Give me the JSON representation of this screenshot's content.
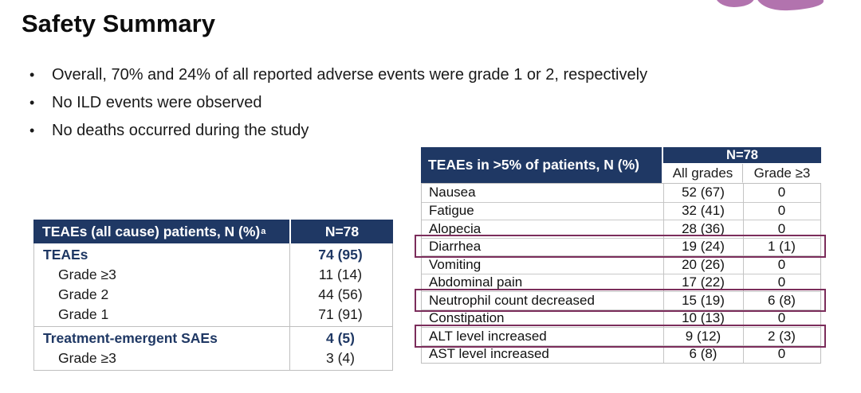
{
  "slide": {
    "title": "Safety Summary",
    "bullets": [
      "Overall, 70% and 24% of all reported adverse events were grade 1 or 2, respectively",
      "No ILD events were observed",
      "No deaths occurred during the study"
    ],
    "bullet_marker": "•"
  },
  "left_table": {
    "header_label": "TEAEs (all cause) patients, N (%)",
    "header_superscript": "a",
    "header_value": "N=78",
    "sections": [
      {
        "rows": [
          {
            "label": "TEAEs",
            "value": "74 (95)"
          },
          {
            "label": "Grade ≥3",
            "value": "11 (14)"
          },
          {
            "label": "Grade 2",
            "value": "44 (56)"
          },
          {
            "label": "Grade 1",
            "value": "71 (91)"
          }
        ]
      },
      {
        "rows": [
          {
            "label": "Treatment-emergent SAEs",
            "value": "4 (5)"
          },
          {
            "label": "Grade ≥3",
            "value": "3 (4)"
          }
        ]
      }
    ]
  },
  "right_table": {
    "header_label": "TEAEs in >5% of patients, N (%)",
    "n_label": "N=78",
    "col_headers": [
      "All grades",
      "Grade ≥3"
    ],
    "rows": [
      {
        "label": "Nausea",
        "all_grades": "52 (67)",
        "grade_ge3": "0",
        "highlighted": false
      },
      {
        "label": "Fatigue",
        "all_grades": "32 (41)",
        "grade_ge3": "0",
        "highlighted": false
      },
      {
        "label": "Alopecia",
        "all_grades": "28 (36)",
        "grade_ge3": "0",
        "highlighted": false
      },
      {
        "label": "Diarrhea",
        "all_grades": "19 (24)",
        "grade_ge3": "1 (1)",
        "highlighted": true
      },
      {
        "label": "Vomiting",
        "all_grades": "20 (26)",
        "grade_ge3": "0",
        "highlighted": false
      },
      {
        "label": "Abdominal pain",
        "all_grades": "17 (22)",
        "grade_ge3": "0",
        "highlighted": false
      },
      {
        "label": "Neutrophil count decreased",
        "all_grades": "15 (19)",
        "grade_ge3": "6 (8)",
        "highlighted": true
      },
      {
        "label": "Constipation",
        "all_grades": "10 (13)",
        "grade_ge3": "0",
        "highlighted": false
      },
      {
        "label": "ALT level increased",
        "all_grades": "9 (12)",
        "grade_ge3": "2 (3)",
        "highlighted": true
      },
      {
        "label": "AST level increased",
        "all_grades": "6 (8)",
        "grade_ge3": "0",
        "highlighted": false
      }
    ]
  },
  "colors": {
    "header_navy": "#1f3864",
    "highlight_outline": "#7b2d5b",
    "logo_purple": "#b273ae",
    "table_border": "#bfbfbf"
  },
  "decoration": {
    "logo_icon": "purple-petal-logo-cropped"
  }
}
